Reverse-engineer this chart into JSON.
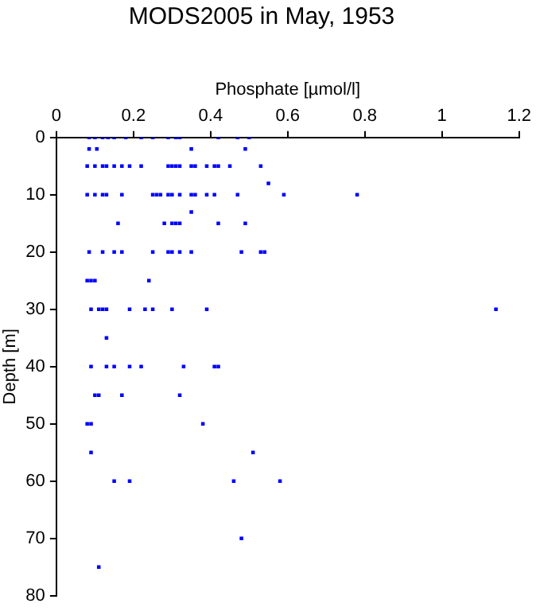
{
  "chart_data": {
    "type": "scatter",
    "title": "MODS2005 in May, 1953",
    "xlabel": "Phosphate [µmol/l]",
    "ylabel": "Depth [m]",
    "xlim": [
      0,
      1.2
    ],
    "xticks": [
      0,
      0.2,
      0.4,
      0.6,
      0.8,
      1,
      1.2
    ],
    "ylim": [
      80,
      0
    ],
    "yticks": [
      0,
      10,
      20,
      30,
      40,
      50,
      60,
      70,
      80
    ],
    "grid": false,
    "legend": false,
    "marker": "square",
    "series": [
      {
        "color": "#0000ff",
        "x": [
          0.085,
          0.1,
          0.12,
          0.134,
          0.15,
          0.18,
          0.22,
          0.25,
          0.29,
          0.31,
          0.32,
          0.42,
          0.47,
          0.5,
          0.085,
          0.105,
          0.35,
          0.49,
          0.08,
          0.1,
          0.12,
          0.13,
          0.15,
          0.17,
          0.19,
          0.22,
          0.29,
          0.3,
          0.31,
          0.32,
          0.35,
          0.36,
          0.39,
          0.41,
          0.42,
          0.45,
          0.53,
          0.55,
          0.08,
          0.1,
          0.12,
          0.13,
          0.17,
          0.25,
          0.26,
          0.27,
          0.29,
          0.3,
          0.32,
          0.35,
          0.36,
          0.39,
          0.41,
          0.47,
          0.59,
          0.78,
          0.35,
          0.16,
          0.28,
          0.3,
          0.31,
          0.32,
          0.42,
          0.49,
          0.085,
          0.12,
          0.15,
          0.17,
          0.25,
          0.29,
          0.3,
          0.32,
          0.35,
          0.48,
          0.53,
          0.54,
          0.08,
          0.09,
          0.1,
          0.24,
          0.09,
          0.11,
          0.12,
          0.13,
          0.19,
          0.23,
          0.25,
          0.3,
          0.39,
          1.14,
          0.13,
          0.09,
          0.13,
          0.15,
          0.19,
          0.22,
          0.33,
          0.41,
          0.42,
          0.1,
          0.11,
          0.17,
          0.32,
          0.08,
          0.09,
          0.38,
          0.09,
          0.51,
          0.15,
          0.19,
          0.46,
          0.58,
          0.48,
          0.11
        ],
        "values": [
          0,
          0,
          0,
          0,
          0,
          0,
          0,
          0,
          0,
          0,
          0,
          0,
          0,
          0,
          2,
          2,
          2,
          2,
          5,
          5,
          5,
          5,
          5,
          5,
          5,
          5,
          5,
          5,
          5,
          5,
          5,
          5,
          5,
          5,
          5,
          5,
          5,
          8,
          10,
          10,
          10,
          10,
          10,
          10,
          10,
          10,
          10,
          10,
          10,
          10,
          10,
          10,
          10,
          10,
          10,
          10,
          13,
          15,
          15,
          15,
          15,
          15,
          15,
          15,
          20,
          20,
          20,
          20,
          20,
          20,
          20,
          20,
          20,
          20,
          20,
          20,
          25,
          25,
          25,
          25,
          30,
          30,
          30,
          30,
          30,
          30,
          30,
          30,
          30,
          30,
          35,
          40,
          40,
          40,
          40,
          40,
          40,
          40,
          40,
          45,
          45,
          45,
          45,
          50,
          50,
          50,
          55,
          55,
          60,
          60,
          60,
          60,
          70,
          75
        ]
      }
    ]
  }
}
